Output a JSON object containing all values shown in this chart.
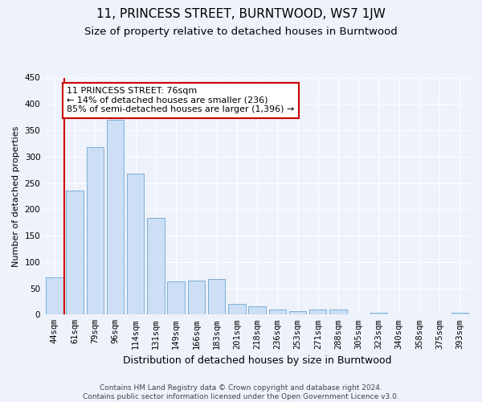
{
  "title": "11, PRINCESS STREET, BURNTWOOD, WS7 1JW",
  "subtitle": "Size of property relative to detached houses in Burntwood",
  "xlabel": "Distribution of detached houses by size in Burntwood",
  "ylabel": "Number of detached properties",
  "categories": [
    "44sqm",
    "61sqm",
    "79sqm",
    "96sqm",
    "114sqm",
    "131sqm",
    "149sqm",
    "166sqm",
    "183sqm",
    "201sqm",
    "218sqm",
    "236sqm",
    "253sqm",
    "271sqm",
    "288sqm",
    "305sqm",
    "323sqm",
    "340sqm",
    "358sqm",
    "375sqm",
    "393sqm"
  ],
  "values": [
    70,
    236,
    318,
    370,
    268,
    184,
    63,
    65,
    67,
    20,
    16,
    10,
    7,
    9,
    9,
    1,
    4,
    1,
    1,
    1,
    3
  ],
  "bar_color": "#ccdff5",
  "bar_edge_color": "#7bafd4",
  "highlight_bar_index": 1,
  "red_line_x": 0.5,
  "annotation_text": "11 PRINCESS STREET: 76sqm\n← 14% of detached houses are smaller (236)\n85% of semi-detached houses are larger (1,396) →",
  "annotation_box_color": "white",
  "annotation_box_edge_color": "#cc0000",
  "ylim": [
    0,
    450
  ],
  "yticks": [
    0,
    50,
    100,
    150,
    200,
    250,
    300,
    350,
    400,
    450
  ],
  "footnote": "Contains HM Land Registry data © Crown copyright and database right 2024.\nContains public sector information licensed under the Open Government Licence v3.0.",
  "bg_color": "#eef2fb",
  "plot_bg_color": "#eef2fb",
  "grid_color": "white",
  "title_fontsize": 11,
  "subtitle_fontsize": 9.5,
  "xlabel_fontsize": 9,
  "ylabel_fontsize": 8,
  "tick_fontsize": 7.5,
  "annot_fontsize": 8,
  "footnote_fontsize": 6.5
}
